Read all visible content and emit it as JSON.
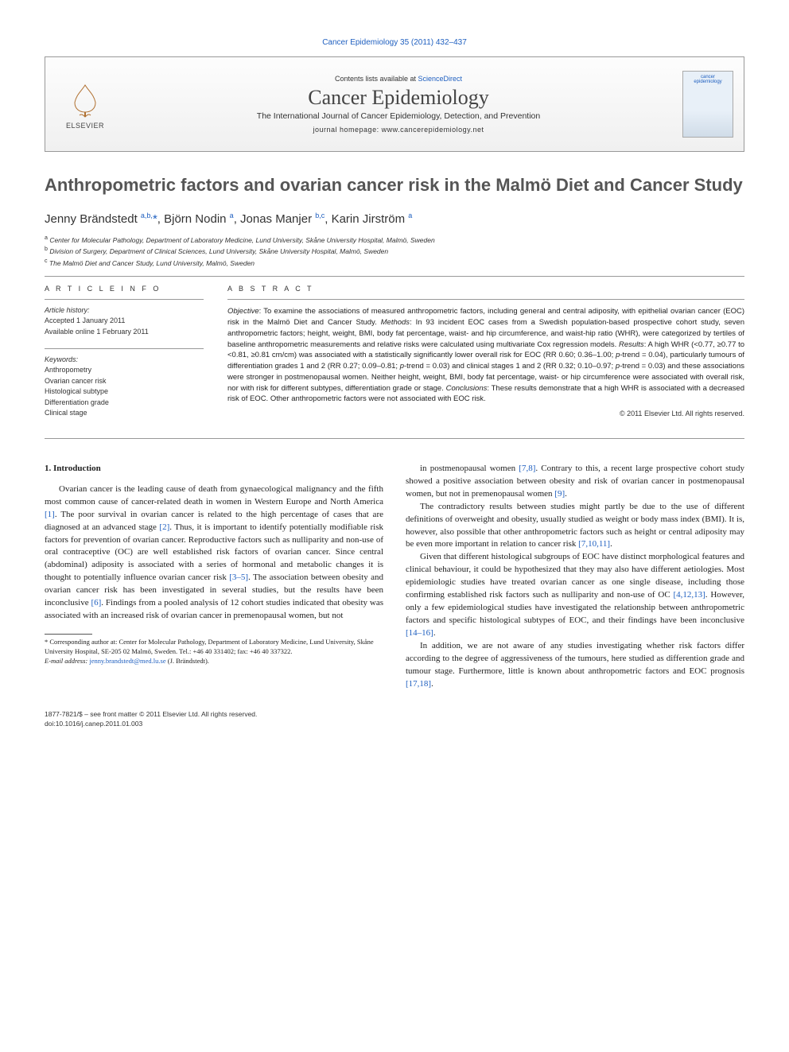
{
  "header_citation": "Cancer Epidemiology 35 (2011) 432–437",
  "banner": {
    "publisher_label": "ELSEVIER",
    "contents_prefix": "Contents lists available at ",
    "contents_link": "ScienceDirect",
    "journal_name": "Cancer Epidemiology",
    "journal_subtitle": "The International Journal of Cancer Epidemiology, Detection, and Prevention",
    "homepage_label": "journal homepage: www.cancerepidemiology.net",
    "cover_label_top": "cancer",
    "cover_label_bottom": "epidemiology"
  },
  "article": {
    "title": "Anthropometric factors and ovarian cancer risk in the Malmö Diet and Cancer Study",
    "authors_html": "Jenny Brändstedt <sup>a,b,</sup><span class='star'>*</span>, Björn Nodin <sup>a</sup>, Jonas Manjer <sup>b,c</sup>, Karin Jirström <sup>a</sup>",
    "affiliations": [
      "a Center for Molecular Pathology, Department of Laboratory Medicine, Lund University, Skåne University Hospital, Malmö, Sweden",
      "b Division of Surgery, Department of Clinical Sciences, Lund University, Skåne University Hospital, Malmö, Sweden",
      "c The Malmö Diet and Cancer Study, Lund University, Malmö, Sweden"
    ]
  },
  "info": {
    "heading": "A R T I C L E   I N F O",
    "history_label": "Article history:",
    "history_lines": [
      "Accepted 1 January 2011",
      "Available online 1 February 2011"
    ],
    "keywords_label": "Keywords:",
    "keywords": [
      "Anthropometry",
      "Ovarian cancer risk",
      "Histological subtype",
      "Differentiation grade",
      "Clinical stage"
    ]
  },
  "abstract": {
    "heading": "A B S T R A C T",
    "text_html": "<i>Objective</i>: To examine the associations of measured anthropometric factors, including general and central adiposity, with epithelial ovarian cancer (EOC) risk in the Malmö Diet and Cancer Study. <i>Methods</i>: In 93 incident EOC cases from a Swedish population-based prospective cohort study, seven anthropometric factors; height, weight, BMI, body fat percentage, waist- and hip circumference, and waist-hip ratio (WHR), were categorized by tertiles of baseline anthropometric measurements and relative risks were calculated using multivariate Cox regression models. <i>Results</i>: A high WHR (<0.77, ≥0.77 to <0.81, ≥0.81 cm/cm) was associated with a statistically significantly lower overall risk for EOC (RR 0.60; 0.36–1.00; <i>p</i>-trend = 0.04), particularly tumours of differentiation grades 1 and 2 (RR 0.27; 0.09–0.81; <i>p</i>-trend = 0.03) and clinical stages 1 and 2 (RR 0.32; 0.10–0.97; <i>p</i>-trend = 0.03) and these associations were stronger in postmenopausal women. Neither height, weight, BMI, body fat percentage, waist- or hip circumference were associated with overall risk, nor with risk for different subtypes, differentiation grade or stage. <i>Conclusions</i>: These results demonstrate that a high WHR is associated with a decreased risk of EOC. Other anthropometric factors were not associated with EOC risk.",
    "copyright": "© 2011 Elsevier Ltd. All rights reserved."
  },
  "body": {
    "section_number": "1.",
    "section_title": "Introduction",
    "p1": "Ovarian cancer is the leading cause of death from gynaecological malignancy and the fifth most common cause of cancer-related death in women in Western Europe and North America [1]. The poor survival in ovarian cancer is related to the high percentage of cases that are diagnosed at an advanced stage [2]. Thus, it is important to identify potentially modifiable risk factors for prevention of ovarian cancer. Reproductive factors such as nulliparity and non-use of oral contraceptive (OC) are well established risk factors of ovarian cancer. Since central (abdominal) adiposity is associated with a series of hormonal and metabolic changes it is thought to potentially influence ovarian cancer risk [3–5]. The association between obesity and ovarian cancer risk has been investigated in several studies, but the results have been inconclusive [6]. Findings from a pooled analysis of 12 cohort studies indicated that obesity was associated with an increased risk of ovarian cancer in premenopausal women, but not",
    "p2": "in postmenopausal women [7,8]. Contrary to this, a recent large prospective cohort study showed a positive association between obesity and risk of ovarian cancer in postmenopausal women, but not in premenopausal women [9].",
    "p3": "The contradictory results between studies might partly be due to the use of different definitions of overweight and obesity, usually studied as weight or body mass index (BMI). It is, however, also possible that other anthropometric factors such as height or central adiposity may be even more important in relation to cancer risk [7,10,11].",
    "p4": "Given that different histological subgroups of EOC have distinct morphological features and clinical behaviour, it could be hypothesized that they may also have different aetiologies. Most epidemiologic studies have treated ovarian cancer as one single disease, including those confirming established risk factors such as nulliparity and non-use of OC [4,12,13]. However, only a few epidemiological studies have investigated the relationship between anthropometric factors and specific histological subtypes of EOC, and their findings have been inconclusive [14–16].",
    "p5": "In addition, we are not aware of any studies investigating whether risk factors differ according to the degree of aggressiveness of the tumours, here studied as differention grade and tumour stage. Furthermore, little is known about anthropometric factors and EOC prognosis [17,18]."
  },
  "footnote": {
    "corr": "* Corresponding author at: Center for Molecular Pathology, Department of Laboratory Medicine, Lund University, Skåne University Hospital, SE-205 02 Malmö, Sweden. Tel.: +46 40 331402; fax: +46 40 337322.",
    "email_label": "E-mail address:",
    "email": "jenny.brandstedt@med.lu.se",
    "email_name": "(J. Brändstedt)."
  },
  "footer": {
    "issn_line": "1877-7821/$ – see front matter © 2011 Elsevier Ltd. All rights reserved.",
    "doi_line": "doi:10.1016/j.canep.2011.01.003"
  },
  "colors": {
    "link": "#2060c0",
    "title_gray": "#555555",
    "rule": "#999999"
  }
}
